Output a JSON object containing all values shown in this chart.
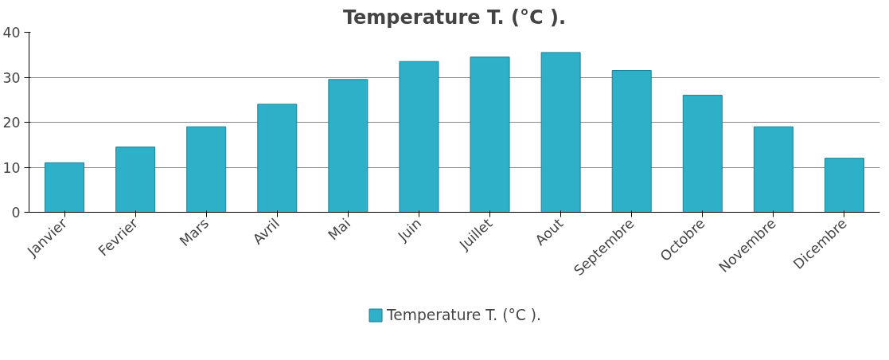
{
  "chart_data": {
    "type": "bar",
    "title": "Temperature T. (°C ).",
    "categories": [
      "Janvier",
      "Fevrier",
      "Mars",
      "Avril",
      "Mai",
      "Juin",
      "Juillet",
      "Aout",
      "Septembre",
      "Octobre",
      "Novembre",
      "Dicembre"
    ],
    "series": [
      {
        "name": "Temperature T. (°C ).",
        "color": "#2fb0c9",
        "values": [
          11,
          14.5,
          19,
          24,
          29.5,
          33.5,
          34.5,
          35.5,
          31.5,
          26,
          19,
          12
        ]
      }
    ],
    "ylim": [
      0,
      40
    ],
    "yticks": [
      0,
      10,
      20,
      30,
      40
    ],
    "grid": "y",
    "legend": "bottom"
  }
}
